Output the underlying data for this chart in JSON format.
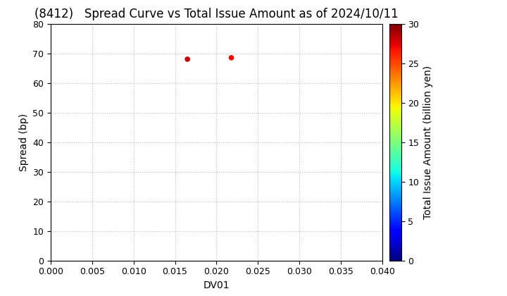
{
  "title": "(8412)   Spread Curve vs Total Issue Amount as of 2024/10/11",
  "xlabel": "DV01",
  "ylabel": "Spread (bp)",
  "colorbar_label": "Total Issue Amount (billion yen)",
  "xlim": [
    0.0,
    0.04
  ],
  "ylim": [
    0,
    80
  ],
  "xticks": [
    0.0,
    0.005,
    0.01,
    0.015,
    0.02,
    0.025,
    0.03,
    0.035,
    0.04
  ],
  "yticks": [
    0,
    10,
    20,
    30,
    40,
    50,
    60,
    70,
    80
  ],
  "colorbar_min": 0,
  "colorbar_max": 30,
  "colorbar_ticks": [
    0,
    5,
    10,
    15,
    20,
    25,
    30
  ],
  "scatter_x": [
    0.0165,
    0.0218
  ],
  "scatter_y": [
    68,
    68.5
  ],
  "scatter_colors": [
    28,
    27
  ],
  "background_color": "#ffffff",
  "grid_color": "#bbbbbb",
  "title_fontsize": 12,
  "axis_fontsize": 10,
  "marker_size": 20
}
